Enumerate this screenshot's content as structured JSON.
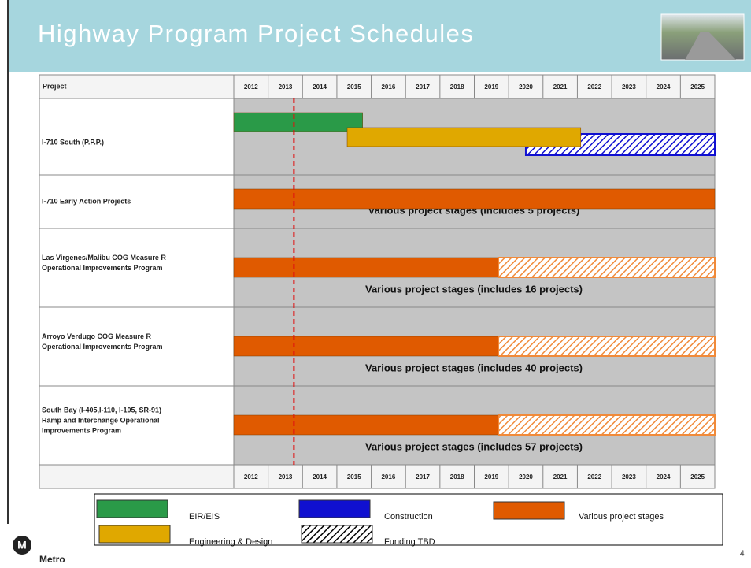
{
  "header": {
    "title": "Highway Program Project Schedules"
  },
  "chart_data": {
    "type": "gantt",
    "column_header": "Project",
    "xlim": [
      2012,
      2026
    ],
    "xticks": [
      2012,
      2013,
      2014,
      2015,
      2016,
      2017,
      2018,
      2019,
      2020,
      2021,
      2022,
      2023,
      2024,
      2025
    ],
    "marker": 2013.75,
    "rows": [
      {
        "label": [
          "I-710 South (P.P.P.)"
        ]
      },
      {
        "label": [
          "I-710 Early Action Projects"
        ],
        "note": "Various project stages (includes 5 projects)"
      },
      {
        "label": [
          "Las Virgenes/Malibu COG Measure R",
          "Operational Improvements Program"
        ],
        "note": "Various project stages (includes 16 projects)"
      },
      {
        "label": [
          "Arroyo Verdugo COG Measure R",
          "Operational Improvements Program"
        ],
        "note": "Various project stages (includes 40 projects)"
      },
      {
        "label": [
          "South Bay (I-405,I-110, I-105, SR-91)",
          "Ramp and Interchange Operational",
          "Improvements Program"
        ],
        "note": "Various project stages (includes 57 projects)"
      }
    ],
    "series": [
      {
        "name": "EIR/EIS",
        "color": "#2a9a48",
        "hatched": false,
        "values": [
          [
            2012,
            2015.75
          ],
          null,
          null,
          null,
          null
        ]
      },
      {
        "name": "Construction",
        "color": "#1010d0",
        "hatched": true,
        "values": [
          [
            2020.5,
            2026
          ],
          null,
          null,
          null,
          null
        ]
      },
      {
        "name": "Various project stages",
        "color": "#e05a00",
        "hatched": false,
        "values": [
          null,
          [
            2012,
            2026
          ],
          [
            2012,
            2019.7
          ],
          [
            2012,
            2019.7
          ],
          [
            2012,
            2019.7
          ]
        ]
      },
      {
        "name": "Engineering & Design",
        "color": "#e0a800",
        "hatched": false,
        "values": [
          [
            2015.3,
            2022.1
          ],
          null,
          null,
          null,
          null
        ]
      },
      {
        "name": "Funding TBD",
        "color": "#f08a3a",
        "hatched": true,
        "values": [
          null,
          null,
          [
            2019.7,
            2026
          ],
          [
            2019.7,
            2026
          ],
          [
            2019.7,
            2026
          ]
        ]
      }
    ]
  },
  "footer": {
    "logo": "Metro",
    "page": "4"
  }
}
